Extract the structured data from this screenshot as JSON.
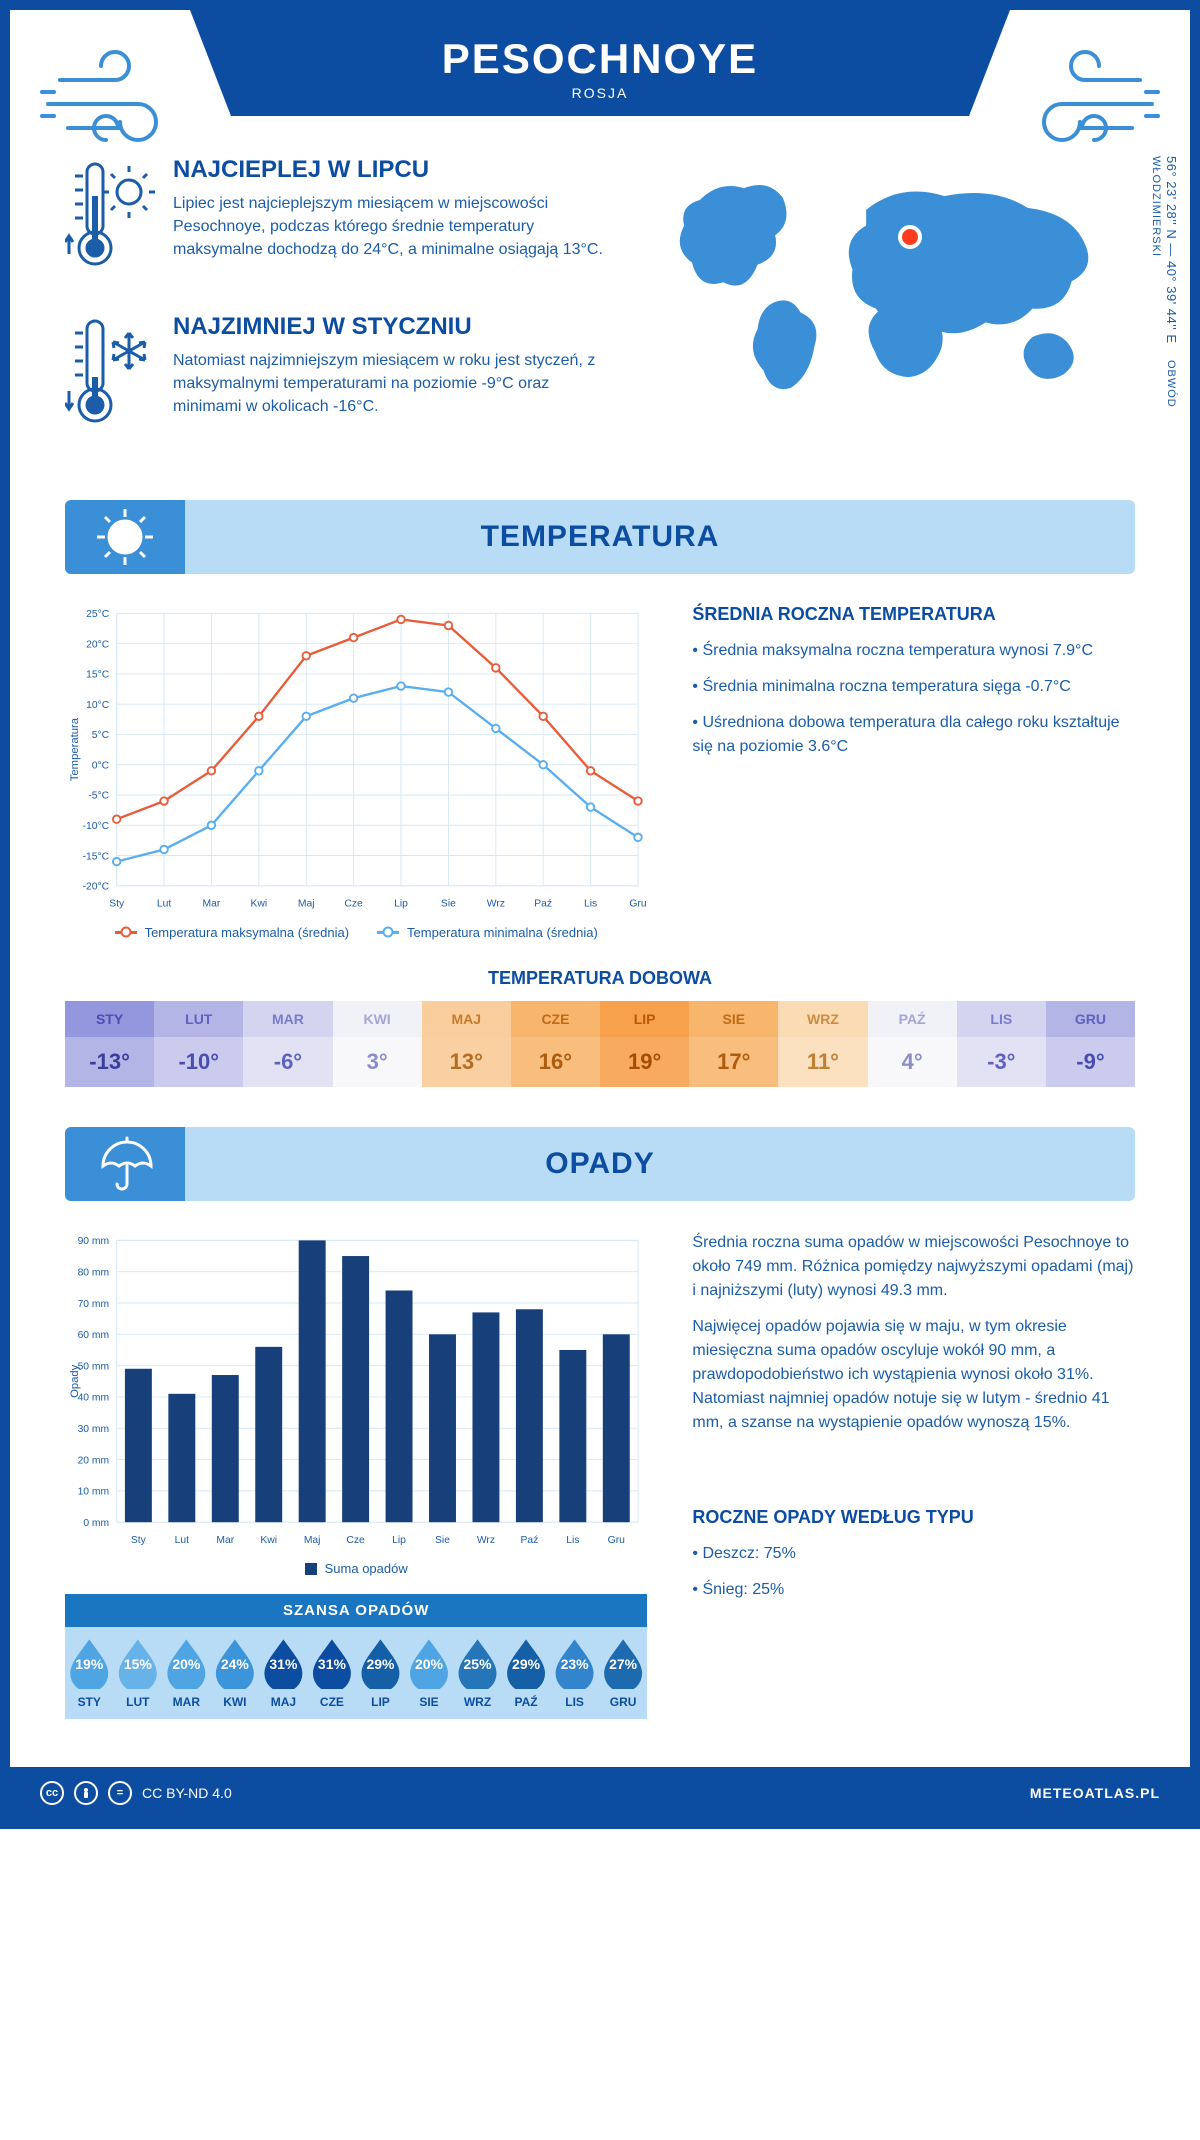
{
  "brand_color": "#0c4da2",
  "accent_color": "#3b8fd6",
  "light_blue": "#b9dcf6",
  "header": {
    "title": "PESOCHNOYE",
    "subtitle": "ROSJA"
  },
  "coords": {
    "lat_lon": "56° 23' 28'' N — 40° 39' 44'' E",
    "region": "OBWÓD WŁODZIMIERSKI"
  },
  "facts": {
    "warm": {
      "title": "NAJCIEPLEJ W LIPCU",
      "text": "Lipiec jest najcieplejszym miesiącem w miejscowości Pesochnoye, podczas którego średnie temperatury maksymalne dochodzą do 24°C, a minimalne osiągają 13°C."
    },
    "cold": {
      "title": "NAJZIMNIEJ W STYCZNIU",
      "text": "Natomiast najzimniejszym miesiącem w roku jest styczeń, z maksymalnymi temperaturami na poziomie -9°C oraz minimami w okolicach -16°C."
    }
  },
  "sections": {
    "temperature": "TEMPERATURA",
    "precipitation": "OPADY"
  },
  "temp_chart": {
    "type": "line",
    "months": [
      "Sty",
      "Lut",
      "Mar",
      "Kwi",
      "Maj",
      "Cze",
      "Lip",
      "Sie",
      "Wrz",
      "Paź",
      "Lis",
      "Gru"
    ],
    "max_series": [
      -9,
      -6,
      -1,
      8,
      18,
      21,
      24,
      23,
      16,
      8,
      -1,
      -6
    ],
    "min_series": [
      -16,
      -14,
      -10,
      -1,
      8,
      11,
      13,
      12,
      6,
      0,
      -7,
      -12
    ],
    "max_color": "#e85c3a",
    "min_color": "#58aef0",
    "ylim": [
      -20,
      25
    ],
    "ytick_step": 5,
    "ylabel": "Temperatura",
    "grid_color": "#d6e8f7",
    "legend_max": "Temperatura maksymalna (średnia)",
    "legend_min": "Temperatura minimalna (średnia)"
  },
  "temp_info": {
    "heading": "ŚREDNIA ROCZNA TEMPERATURA",
    "bullets": [
      "Średnia maksymalna roczna temperatura wynosi 7.9°C",
      "Średnia minimalna roczna temperatura sięga -0.7°C",
      "Uśredniona dobowa temperatura dla całego roku kształtuje się na poziomie 3.6°C"
    ]
  },
  "daily": {
    "title": "TEMPERATURA DOBOWA",
    "months": [
      "STY",
      "LUT",
      "MAR",
      "KWI",
      "MAJ",
      "CZE",
      "LIP",
      "SIE",
      "WRZ",
      "PAŹ",
      "LIS",
      "GRU"
    ],
    "values": [
      "-13°",
      "-10°",
      "-6°",
      "3°",
      "13°",
      "16°",
      "19°",
      "17°",
      "11°",
      "4°",
      "-3°",
      "-9°"
    ],
    "head_colors": [
      "#9497dd",
      "#b3b5e6",
      "#d3d4f0",
      "#f1f1f8",
      "#f9ce9c",
      "#f8b66c",
      "#f7a14d",
      "#f8b66c",
      "#fadbb3",
      "#f1f1f8",
      "#d3d4f0",
      "#b3b5e6"
    ],
    "body_colors": [
      "#b3b5e6",
      "#cacbed",
      "#e2e2f4",
      "#f8f8fb",
      "#facfa1",
      "#f9bd7e",
      "#f8ab60",
      "#f9bd7e",
      "#fbe1c0",
      "#f8f8fb",
      "#e2e2f4",
      "#cacbed"
    ],
    "head_text": [
      "#4a4db0",
      "#5f62be",
      "#7a7ccb",
      "#a4a5d6",
      "#c77c2c",
      "#c06a17",
      "#b85908",
      "#c06a17",
      "#cd8d44",
      "#a4a5d6",
      "#7a7ccb",
      "#5f62be"
    ],
    "body_text": [
      "#3a3d9a",
      "#4a4db0",
      "#5f62be",
      "#8b8dc9",
      "#b66d1f",
      "#ae5d0e",
      "#a54d00",
      "#ae5d0e",
      "#c07f34",
      "#8b8dc9",
      "#5f62be",
      "#4a4db0"
    ]
  },
  "precip_chart": {
    "type": "bar",
    "months": [
      "Sty",
      "Lut",
      "Mar",
      "Kwi",
      "Maj",
      "Cze",
      "Lip",
      "Sie",
      "Wrz",
      "Paź",
      "Lis",
      "Gru"
    ],
    "values": [
      49,
      41,
      47,
      56,
      90,
      85,
      74,
      60,
      67,
      68,
      55,
      60
    ],
    "bar_color": "#173f7a",
    "ylim": [
      0,
      90
    ],
    "ytick_step": 10,
    "ylabel": "Opady",
    "grid_color": "#d6e8f7",
    "legend": "Suma opadów"
  },
  "precip_info": {
    "p1": "Średnia roczna suma opadów w miejscowości Pesochnoye to około 749 mm. Różnica pomiędzy najwyższymi opadami (maj) i najniższymi (luty) wynosi 49.3 mm.",
    "p2": "Najwięcej opadów pojawia się w maju, w tym okresie miesięczna suma opadów oscyluje wokół 90 mm, a prawdopodobieństwo ich wystąpienia wynosi około 31%. Natomiast najmniej opadów notuje się w lutym - średnio 41 mm, a szanse na wystąpienie opadów wynoszą 15%.",
    "type_heading": "ROCZNE OPADY WEDŁUG TYPU",
    "type_bullets": [
      "Deszcz: 75%",
      "Śnieg: 25%"
    ]
  },
  "chance": {
    "title": "SZANSA OPADÓW",
    "months": [
      "STY",
      "LUT",
      "MAR",
      "KWI",
      "MAJ",
      "CZE",
      "LIP",
      "SIE",
      "WRZ",
      "PAŹ",
      "LIS",
      "GRU"
    ],
    "values": [
      "19%",
      "15%",
      "20%",
      "24%",
      "31%",
      "31%",
      "29%",
      "20%",
      "25%",
      "29%",
      "23%",
      "27%"
    ],
    "colors": [
      "#4fa5e3",
      "#67b3e9",
      "#4fa5e3",
      "#3c95da",
      "#0c4da2",
      "#0c4da2",
      "#155fa7",
      "#4fa5e3",
      "#2575b9",
      "#155fa7",
      "#3285cc",
      "#1e6aaf"
    ]
  },
  "footer": {
    "license": "CC BY-ND 4.0",
    "site": "METEOATLAS.PL"
  }
}
